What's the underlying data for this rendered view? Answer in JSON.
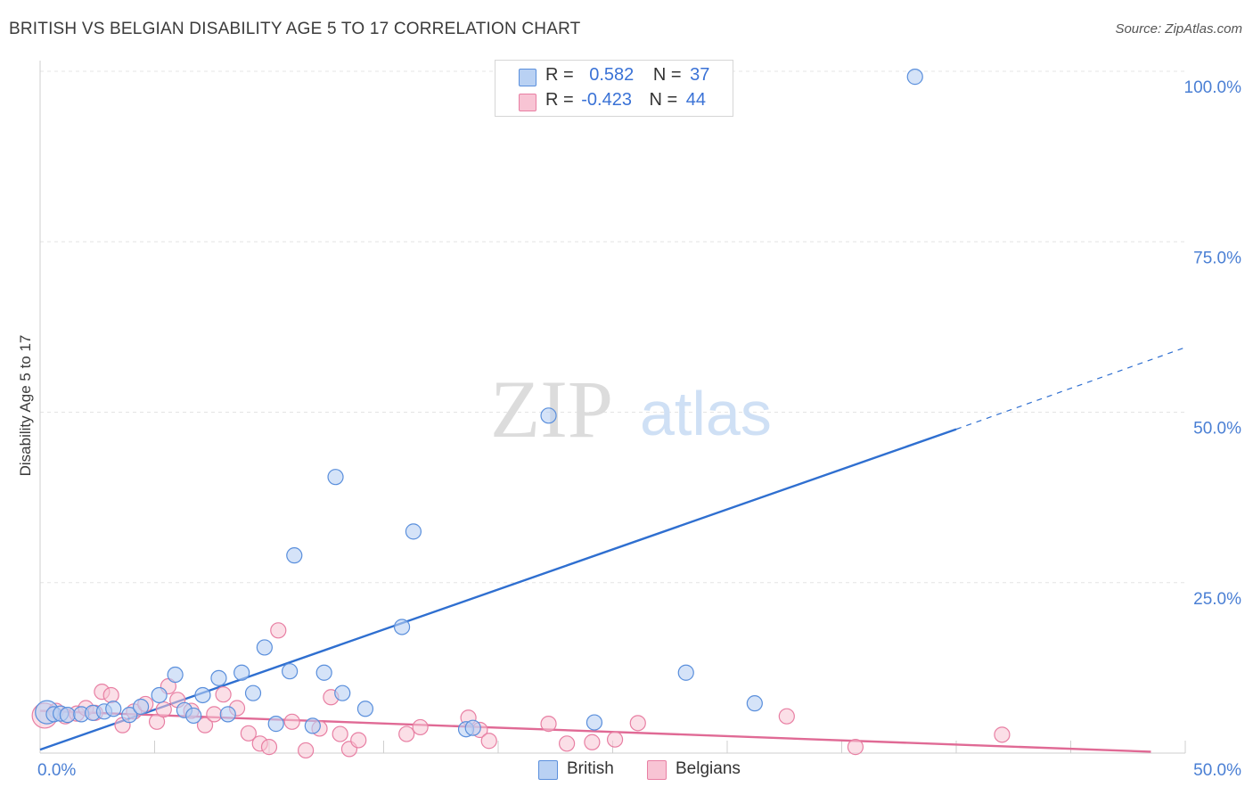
{
  "header": {
    "title": "BRITISH VS BELGIAN DISABILITY AGE 5 TO 17 CORRELATION CHART",
    "source": "Source: ZipAtlas.com"
  },
  "watermark": {
    "zip": "ZIP",
    "atlas": "atlas"
  },
  "legend": {
    "british": {
      "r_label": "R =",
      "r_value": "0.582",
      "n_label": "N =",
      "n_value": "37"
    },
    "belgians": {
      "r_label": "R =",
      "r_value": "-0.423",
      "n_label": "N =",
      "n_value": "44"
    }
  },
  "bottom_legend": {
    "british": "British",
    "belgians": "Belgians"
  },
  "colors": {
    "british_fill": "#b9d1f3",
    "british_stroke": "#5a8fdc",
    "british_line": "#2f6fd0",
    "belgians_fill": "#f8c4d4",
    "belgians_stroke": "#e87fa3",
    "belgians_line": "#e06a95",
    "tick_text": "#4a7fd4"
  },
  "chart_data": {
    "type": "scatter",
    "title": "BRITISH VS BELGIAN DISABILITY AGE 5 TO 17 CORRELATION CHART",
    "xlabel": "",
    "ylabel": "Disability Age 5 to 17",
    "xlim": [
      0,
      50
    ],
    "ylim": [
      0,
      100
    ],
    "x_ticks": [
      0,
      50
    ],
    "x_tick_labels": [
      "0.0%",
      "50.0%"
    ],
    "y_ticks": [
      25,
      50,
      75,
      100
    ],
    "y_tick_labels": [
      "25.0%",
      "50.0%",
      "75.0%",
      "100.0%"
    ],
    "grid": true,
    "legend_position": "top-center",
    "series": [
      {
        "name": "British",
        "r": 0.582,
        "n": 37,
        "points": [
          [
            0.3,
            6.0
          ],
          [
            0.6,
            5.7
          ],
          [
            0.9,
            5.8
          ],
          [
            1.2,
            5.6
          ],
          [
            1.8,
            5.7
          ],
          [
            2.3,
            5.9
          ],
          [
            2.8,
            6.1
          ],
          [
            3.2,
            6.5
          ],
          [
            3.9,
            5.6
          ],
          [
            4.4,
            6.8
          ],
          [
            5.2,
            8.5
          ],
          [
            5.9,
            11.5
          ],
          [
            6.3,
            6.3
          ],
          [
            6.7,
            5.5
          ],
          [
            7.1,
            8.5
          ],
          [
            7.8,
            11.0
          ],
          [
            8.2,
            5.7
          ],
          [
            8.8,
            11.8
          ],
          [
            9.3,
            8.8
          ],
          [
            9.8,
            15.5
          ],
          [
            10.3,
            4.3
          ],
          [
            10.9,
            12.0
          ],
          [
            11.1,
            29.0
          ],
          [
            11.9,
            4.0
          ],
          [
            12.4,
            11.8
          ],
          [
            12.9,
            40.5
          ],
          [
            13.2,
            8.8
          ],
          [
            14.2,
            6.5
          ],
          [
            15.8,
            18.5
          ],
          [
            16.3,
            32.5
          ],
          [
            18.6,
            3.5
          ],
          [
            18.9,
            3.7
          ],
          [
            22.2,
            49.5
          ],
          [
            24.2,
            4.5
          ],
          [
            28.2,
            11.8
          ],
          [
            31.2,
            7.3
          ],
          [
            38.2,
            99.2
          ]
        ],
        "trend": {
          "x0": 0,
          "y0": 0.5,
          "x1": 40,
          "y1": 47.5,
          "dashed_x1": 50,
          "dashed_y1": 59.5
        }
      },
      {
        "name": "Belgians",
        "r": -0.423,
        "n": 44,
        "points": [
          [
            0.2,
            5.5
          ],
          [
            0.7,
            6.2
          ],
          [
            1.1,
            5.4
          ],
          [
            1.6,
            5.8
          ],
          [
            2.0,
            6.6
          ],
          [
            2.4,
            5.9
          ],
          [
            2.7,
            9.0
          ],
          [
            3.1,
            8.5
          ],
          [
            3.6,
            4.1
          ],
          [
            4.1,
            6.1
          ],
          [
            4.6,
            7.2
          ],
          [
            5.1,
            4.6
          ],
          [
            5.4,
            6.4
          ],
          [
            5.6,
            9.8
          ],
          [
            6.0,
            7.8
          ],
          [
            6.6,
            6.2
          ],
          [
            7.2,
            4.1
          ],
          [
            7.6,
            5.7
          ],
          [
            8.0,
            8.6
          ],
          [
            8.6,
            6.6
          ],
          [
            9.1,
            2.9
          ],
          [
            9.6,
            1.4
          ],
          [
            10.0,
            0.9
          ],
          [
            10.4,
            18.0
          ],
          [
            11.0,
            4.6
          ],
          [
            11.6,
            0.4
          ],
          [
            12.2,
            3.6
          ],
          [
            12.7,
            8.2
          ],
          [
            13.1,
            2.8
          ],
          [
            13.5,
            0.6
          ],
          [
            13.9,
            1.9
          ],
          [
            16.0,
            2.8
          ],
          [
            16.6,
            3.8
          ],
          [
            18.7,
            5.2
          ],
          [
            19.2,
            3.4
          ],
          [
            19.6,
            1.8
          ],
          [
            22.2,
            4.3
          ],
          [
            23.0,
            1.4
          ],
          [
            24.1,
            1.6
          ],
          [
            25.1,
            2.0
          ],
          [
            26.1,
            4.4
          ],
          [
            32.6,
            5.4
          ],
          [
            35.6,
            0.9
          ],
          [
            42.0,
            2.7
          ]
        ],
        "trend": {
          "x0": 0,
          "y0": 6.2,
          "x1": 48.5,
          "y1": 0.2
        }
      }
    ]
  }
}
